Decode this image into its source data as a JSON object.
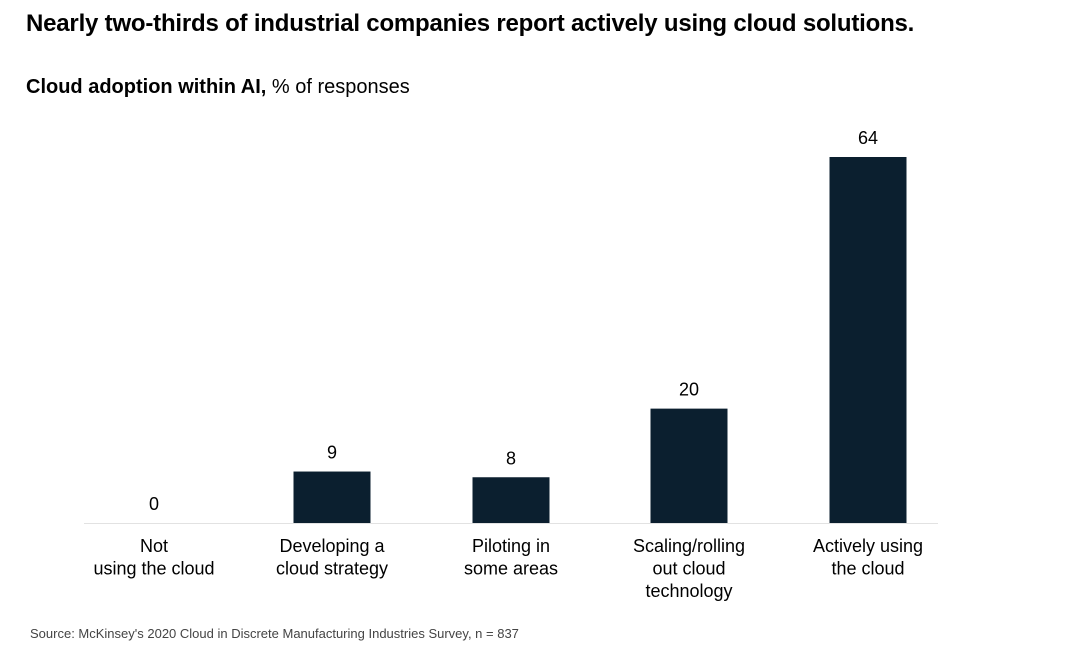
{
  "title": "Nearly two-thirds of industrial companies report actively using cloud solutions.",
  "subtitle": {
    "bold": "Cloud adoption within AI,",
    "normal": "% of responses"
  },
  "source": "Source: McKinsey's 2020 Cloud in Discrete Manufacturing Industries Survey, n = 837",
  "colors": {
    "bar": "#0b1f2f",
    "axis": "#e2e2e2",
    "text": "#000000"
  },
  "chart_data": {
    "type": "bar",
    "title": "Nearly two-thirds of industrial companies report actively using cloud solutions.",
    "ylabel": "% of responses",
    "categories": [
      [
        "Not",
        "using the cloud"
      ],
      [
        "Developing a",
        "cloud strategy"
      ],
      [
        "Piloting in",
        "some areas"
      ],
      [
        "Scaling/rolling",
        "out cloud",
        "technology"
      ],
      [
        "Actively using",
        "the cloud"
      ]
    ],
    "values": [
      0,
      9,
      8,
      20,
      64
    ],
    "ylim": [
      0,
      64
    ],
    "grid": false
  }
}
